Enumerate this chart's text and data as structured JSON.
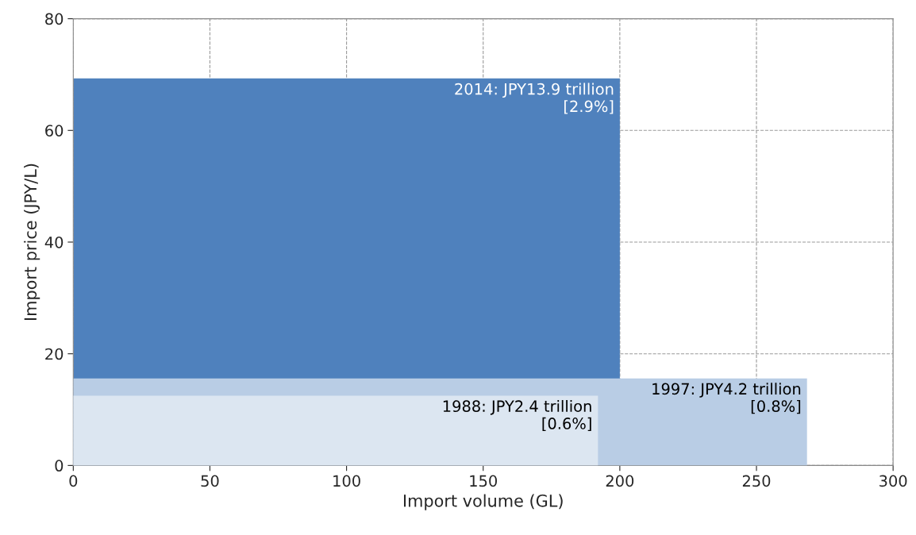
{
  "chart_data": {
    "type": "area",
    "xlabel": "Import volume (GL)",
    "ylabel": "Import price (JPY/L)",
    "xlim": [
      0,
      300
    ],
    "xticks": [
      0,
      50,
      100,
      150,
      200,
      250,
      300
    ],
    "ylim": [
      0,
      80
    ],
    "yticks": [
      0,
      20,
      40,
      60,
      80
    ],
    "grid": true,
    "series": [
      {
        "color": "#4f81bd",
        "x": [
          0,
          200
        ],
        "values": [
          69.3,
          69.3
        ]
      },
      {
        "color": "#b9cde5",
        "x": [
          0,
          268.5
        ],
        "values": [
          15.6,
          15.6
        ]
      },
      {
        "color": "#dce6f1",
        "x": [
          0,
          192
        ],
        "values": [
          12.5,
          12.5
        ]
      }
    ],
    "annotations": [
      {
        "text": "2014: JPY13.9 trillion\n[2.9%]",
        "x": 200,
        "y": 69.3
      },
      {
        "text": "1997: JPY4.2 trillion\n[0.8%]",
        "x": 268.5,
        "y": 15.6
      },
      {
        "text": "1988: JPY2.4 trillion\n[0.6%]",
        "x": 192,
        "y": 12.5
      }
    ]
  }
}
